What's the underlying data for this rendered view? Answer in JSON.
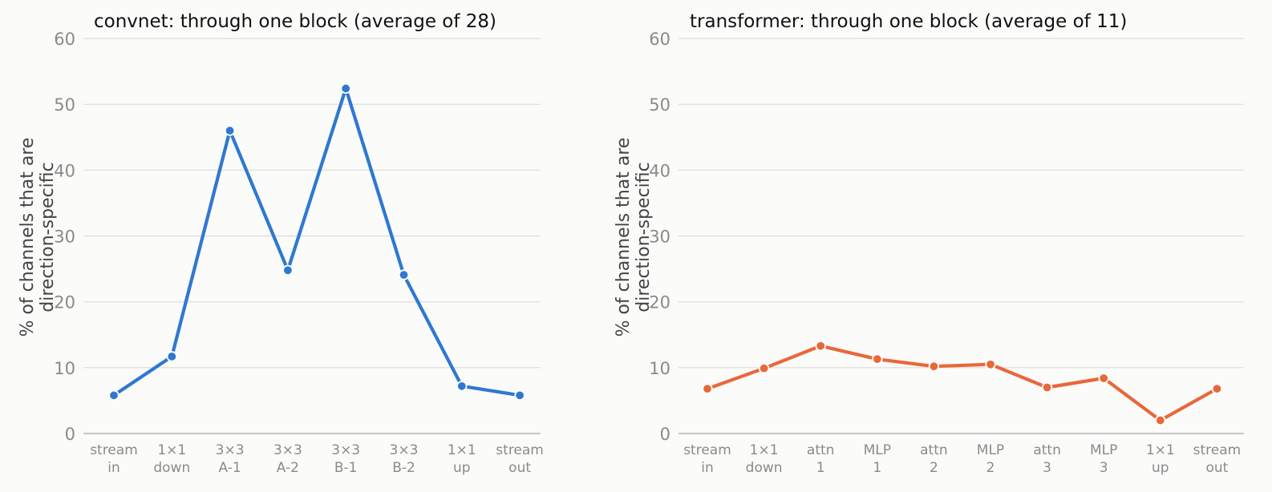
{
  "chart_data": [
    {
      "type": "line",
      "title": "convnet: through one block (average of 28)",
      "ylabel_lines": [
        "% of channels that are",
        "direction-specific"
      ],
      "ylim": [
        0,
        60
      ],
      "yticks": [
        "0",
        "10",
        "20",
        "30",
        "40",
        "50",
        "60"
      ],
      "grid": true,
      "color": "#2e78d2",
      "categories": [
        [
          "stream",
          "in"
        ],
        [
          "1×1",
          "down"
        ],
        [
          "3×3",
          "A-1"
        ],
        [
          "3×3",
          "A-2"
        ],
        [
          "3×3",
          "B-1"
        ],
        [
          "3×3",
          "B-2"
        ],
        [
          "1×1",
          "up"
        ],
        [
          "stream",
          "out"
        ]
      ],
      "values": [
        5.8,
        11.7,
        46.0,
        24.8,
        52.4,
        24.1,
        7.2,
        5.8
      ]
    },
    {
      "type": "line",
      "title": "transformer: through one block (average of 11)",
      "ylabel_lines": [
        "% of channels that are",
        "direction-specific"
      ],
      "ylim": [
        0,
        60
      ],
      "yticks": [
        "0",
        "10",
        "20",
        "30",
        "40",
        "50",
        "60"
      ],
      "grid": true,
      "color": "#e8683a",
      "categories": [
        [
          "stream",
          "in"
        ],
        [
          "1×1",
          "down"
        ],
        [
          "attn",
          "1"
        ],
        [
          "MLP",
          "1"
        ],
        [
          "attn",
          "2"
        ],
        [
          "MLP",
          "2"
        ],
        [
          "attn",
          "3"
        ],
        [
          "MLP",
          "3"
        ],
        [
          "1×1",
          "up"
        ],
        [
          "stream",
          "out"
        ]
      ],
      "values": [
        6.8,
        9.9,
        13.3,
        11.3,
        10.2,
        10.5,
        7.0,
        8.4,
        2.0,
        6.8
      ]
    }
  ]
}
